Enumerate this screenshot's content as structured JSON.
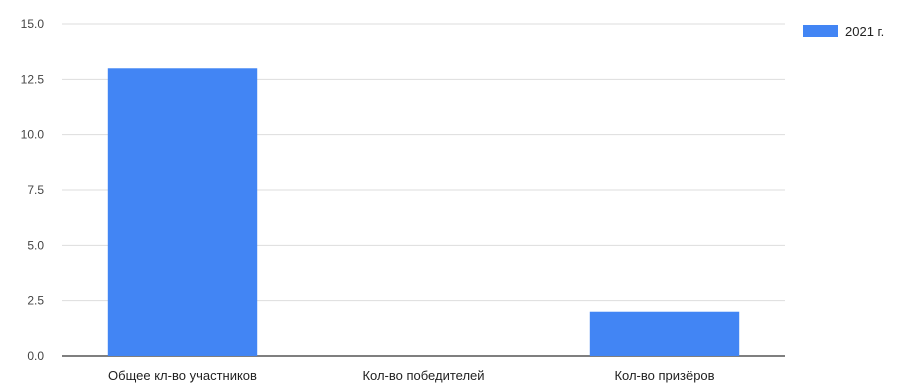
{
  "chart_data": {
    "type": "bar",
    "categories": [
      "Общее кл-во участников",
      "Кол-во победителей",
      "Кол-во призёров"
    ],
    "series": [
      {
        "name": "2021 г.",
        "values": [
          13,
          0,
          2
        ],
        "color": "#4285f4"
      }
    ],
    "y_ticks": [
      "0.0",
      "2.5",
      "5.0",
      "7.5",
      "10.0",
      "12.5",
      "15.0"
    ],
    "ylim": [
      0,
      15
    ],
    "grid": true,
    "legend_position": "right"
  }
}
